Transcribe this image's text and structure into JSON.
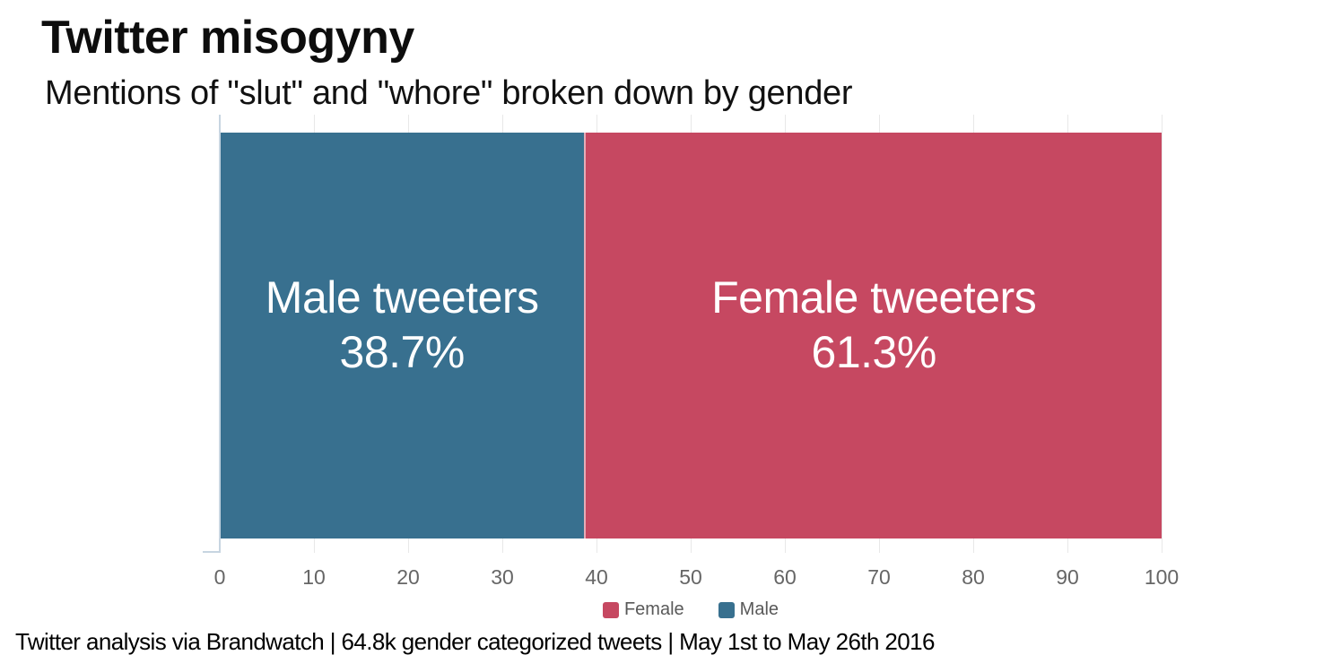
{
  "header": {
    "title": "Twitter misogyny",
    "subtitle": "Mentions of \"slut\" and \"whore\" broken down by gender"
  },
  "footer": {
    "source_line": "Twitter analysis via Brandwatch | 64.8k gender categorized tweets | May 1st to May 26th 2016"
  },
  "colors": {
    "male_blue": "#38708F",
    "female_red": "#C64861",
    "axis_line": "#C7D5E1",
    "gridline": "#E8E8E8",
    "tick_text": "#666666",
    "legend_text": "#595959",
    "bar_label_text": "#FFFFFF",
    "background": "#FFFFFF"
  },
  "chart_data": {
    "type": "bar",
    "orientation": "horizontal-stacked",
    "title": "Twitter misogyny",
    "subtitle": "Mentions of \"slut\" and \"whore\" broken down by gender",
    "series": [
      {
        "name": "Male",
        "label_line1": "Male tweeters",
        "label_line2": "38.7%",
        "value": 38.7,
        "color": "#38708F"
      },
      {
        "name": "Female",
        "label_line1": "Female tweeters",
        "label_line2": "61.3%",
        "value": 61.3,
        "color": "#C64861"
      }
    ],
    "axis": {
      "min": 0,
      "max": 100,
      "ticks": [
        0,
        10,
        20,
        30,
        40,
        50,
        60,
        70,
        80,
        90,
        100
      ]
    },
    "legend": {
      "position": "bottom-center",
      "items": [
        {
          "label": "Female",
          "color": "#C64861"
        },
        {
          "label": "Male",
          "color": "#38708F"
        }
      ]
    },
    "grid": true
  }
}
